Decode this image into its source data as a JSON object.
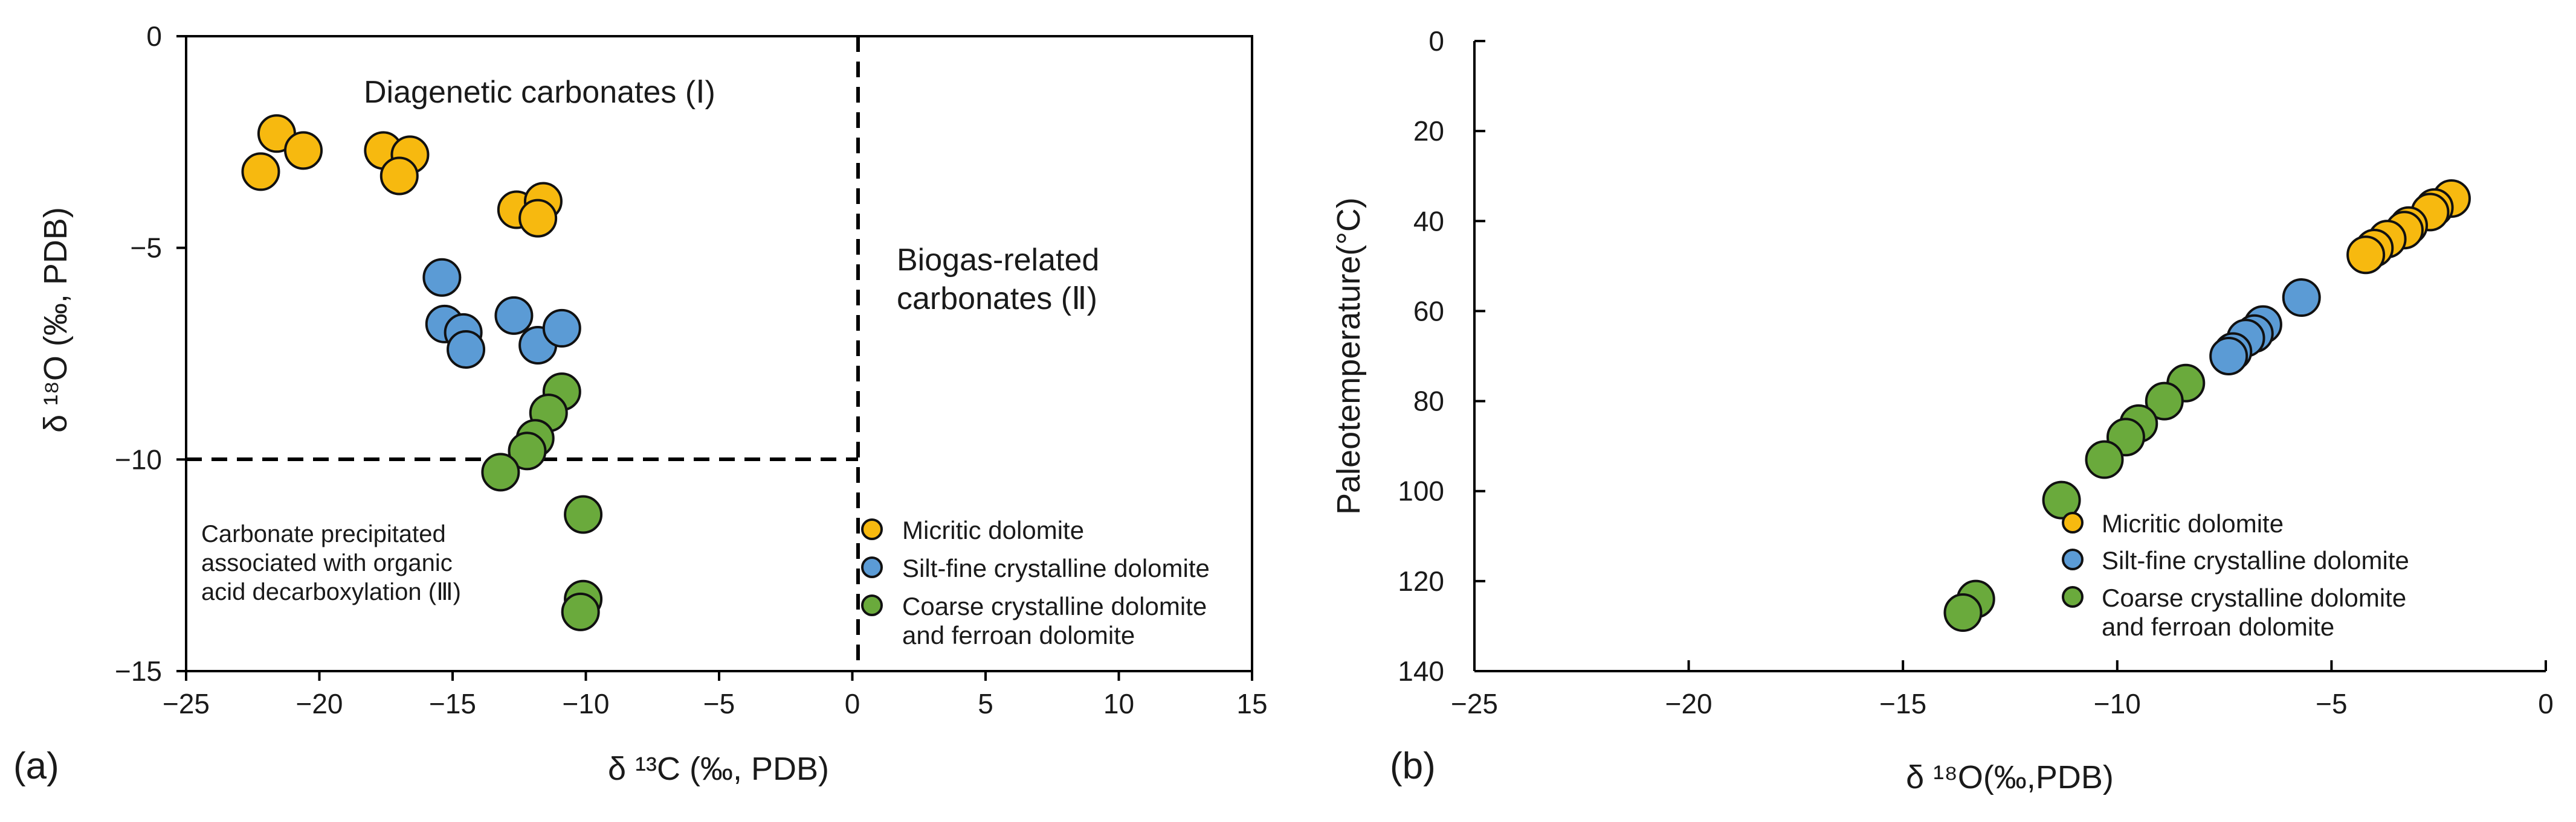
{
  "colors": {
    "micritic": "#f7b90f",
    "silt": "#5b9bd5",
    "coarse": "#6aaa3c",
    "axis": "#000000",
    "text": "#1a1a1a"
  },
  "chart_data": [
    {
      "type": "scatter",
      "panel_label": "(a)",
      "xlabel": "δ ¹³C (‰, PDB)",
      "ylabel": "δ ¹⁸O (‰, PDB)",
      "xlim": [
        -25,
        15
      ],
      "ylim": [
        -15,
        0
      ],
      "x_ticks": [
        "−25",
        "−20",
        "−15",
        "−10",
        "−5",
        "0",
        "5",
        "10",
        "15"
      ],
      "y_ticks": [
        "0",
        "−5",
        "−10",
        "−15"
      ],
      "dividers": {
        "x": 0,
        "y": -10.5
      },
      "regions": {
        "I": "Diagenetic carbonates (Ⅰ)",
        "II_line1": "Biogas-related",
        "II_line2": "carbonates (Ⅱ)",
        "III_line1": "Carbonate precipitated",
        "III_line2": "associated with organic",
        "III_line3": "acid decarboxylation (Ⅲ)"
      },
      "legend": {
        "micritic": "Micritic dolomite",
        "silt": "Silt-fine crystalline dolomite",
        "coarse_line1": "Coarse crystalline dolomite",
        "coarse_line2": "and ferroan dolomite"
      },
      "series": [
        {
          "name": "Micritic dolomite",
          "color_key": "micritic",
          "points": [
            [
              -22.2,
              -3.2
            ],
            [
              -21.6,
              -2.3
            ],
            [
              -20.6,
              -2.7
            ],
            [
              -17.6,
              -2.7
            ],
            [
              -16.6,
              -2.8
            ],
            [
              -17.0,
              -3.3
            ],
            [
              -12.6,
              -4.1
            ],
            [
              -11.6,
              -3.9
            ],
            [
              -11.8,
              -4.3
            ]
          ]
        },
        {
          "name": "Silt-fine crystalline dolomite",
          "color_key": "silt",
          "points": [
            [
              -15.4,
              -5.7
            ],
            [
              -15.3,
              -6.8
            ],
            [
              -14.6,
              -7.0
            ],
            [
              -14.5,
              -7.4
            ],
            [
              -12.7,
              -6.6
            ],
            [
              -11.8,
              -7.3
            ],
            [
              -10.9,
              -6.9
            ]
          ]
        },
        {
          "name": "Coarse crystalline dolomite and ferroan dolomite",
          "color_key": "coarse",
          "points": [
            [
              -10.9,
              -8.4
            ],
            [
              -11.4,
              -8.9
            ],
            [
              -11.9,
              -9.5
            ],
            [
              -12.2,
              -9.8
            ],
            [
              -13.2,
              -10.3
            ],
            [
              -10.1,
              -11.3
            ],
            [
              -10.1,
              -13.3
            ],
            [
              -10.2,
              -13.6
            ]
          ]
        }
      ]
    },
    {
      "type": "scatter",
      "panel_label": "(b)",
      "xlabel": "δ ¹⁸O(‰,PDB)",
      "ylabel": "Paleotemperature(°C)",
      "xlim": [
        -25,
        0
      ],
      "ylim": [
        0,
        140
      ],
      "y_inverted": true,
      "x_ticks": [
        "−25",
        "−20",
        "−15",
        "−10",
        "−5",
        "0"
      ],
      "y_ticks": [
        "0",
        "20",
        "40",
        "60",
        "80",
        "100",
        "120",
        "140"
      ],
      "legend": {
        "micritic": "Micritic dolomite",
        "silt": "Silt-fine crystalline dolomite",
        "coarse_line1": "Coarse crystalline dolomite",
        "coarse_line2": "and ferroan dolomite"
      },
      "series": [
        {
          "name": "Micritic dolomite",
          "color_key": "micritic",
          "points": [
            [
              -2.2,
              35
            ],
            [
              -2.6,
              37
            ],
            [
              -2.7,
              38
            ],
            [
              -3.2,
              41
            ],
            [
              -3.3,
              42
            ],
            [
              -3.7,
              44
            ],
            [
              -4.0,
              46
            ],
            [
              -4.2,
              47.5
            ]
          ]
        },
        {
          "name": "Silt-fine crystalline dolomite",
          "color_key": "silt",
          "points": [
            [
              -5.7,
              57
            ],
            [
              -6.6,
              63
            ],
            [
              -6.8,
              65
            ],
            [
              -7.0,
              66
            ],
            [
              -7.3,
              69
            ],
            [
              -7.4,
              70
            ]
          ]
        },
        {
          "name": "Coarse crystalline dolomite and ferroan dolomite",
          "color_key": "coarse",
          "points": [
            [
              -8.4,
              76
            ],
            [
              -8.9,
              80
            ],
            [
              -9.5,
              85
            ],
            [
              -9.8,
              88
            ],
            [
              -10.3,
              93
            ],
            [
              -11.3,
              102
            ],
            [
              -13.3,
              124
            ],
            [
              -13.6,
              127
            ]
          ]
        }
      ]
    }
  ]
}
